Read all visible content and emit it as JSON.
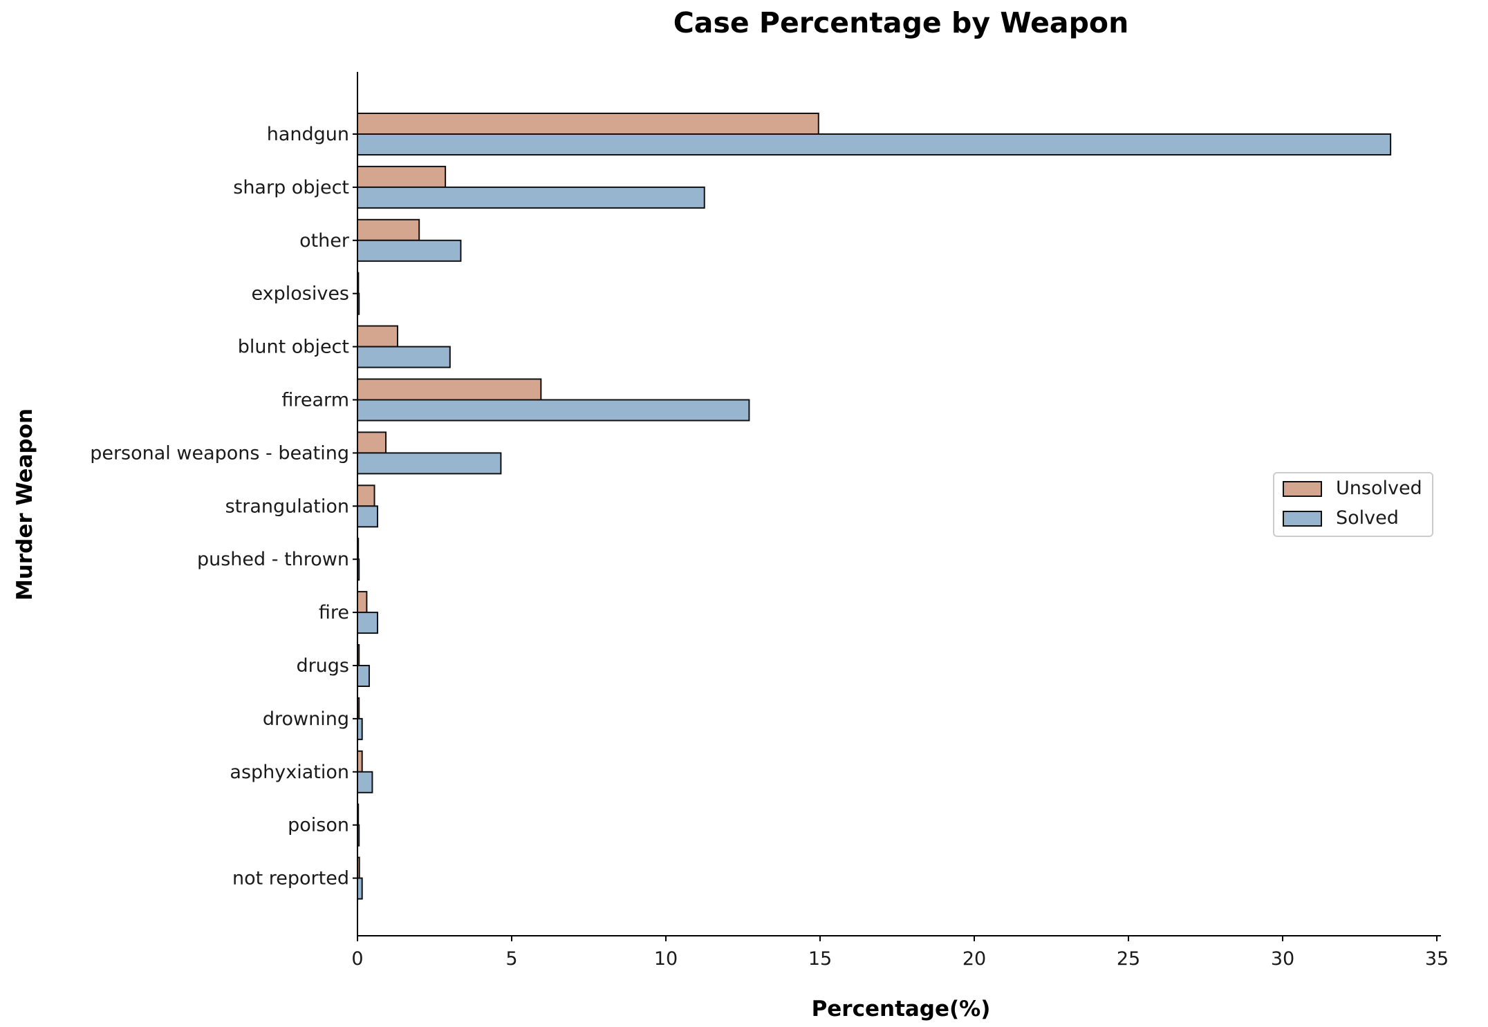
{
  "chart_data": {
    "type": "bar",
    "orientation": "horizontal",
    "title": "Case Percentage by Weapon",
    "xlabel": "Percentage(%)",
    "ylabel": "Murder Weapon",
    "xlim": [
      0,
      35
    ],
    "xticks": [
      0,
      5,
      10,
      15,
      20,
      25,
      30,
      35
    ],
    "grid": false,
    "legend_position": "right",
    "categories": [
      "handgun",
      "sharp object",
      "other",
      "explosives",
      "blunt object",
      "firearm",
      "personal weapons - beating",
      "strangulation",
      "pushed - thrown",
      "fire",
      "drugs",
      "drowning",
      "asphyxiation",
      "poison",
      "not reported"
    ],
    "series": [
      {
        "name": "Unsolved",
        "color": "#d4a690",
        "values": [
          14.95,
          2.85,
          2.0,
          0.03,
          1.3,
          5.95,
          0.92,
          0.55,
          0.02,
          0.3,
          0.05,
          0.05,
          0.15,
          0.02,
          0.06
        ]
      },
      {
        "name": "Solved",
        "color": "#98b5d0",
        "values": [
          33.5,
          11.25,
          3.35,
          0.05,
          3.0,
          12.7,
          4.65,
          0.65,
          0.05,
          0.65,
          0.38,
          0.15,
          0.48,
          0.05,
          0.15
        ]
      }
    ]
  }
}
